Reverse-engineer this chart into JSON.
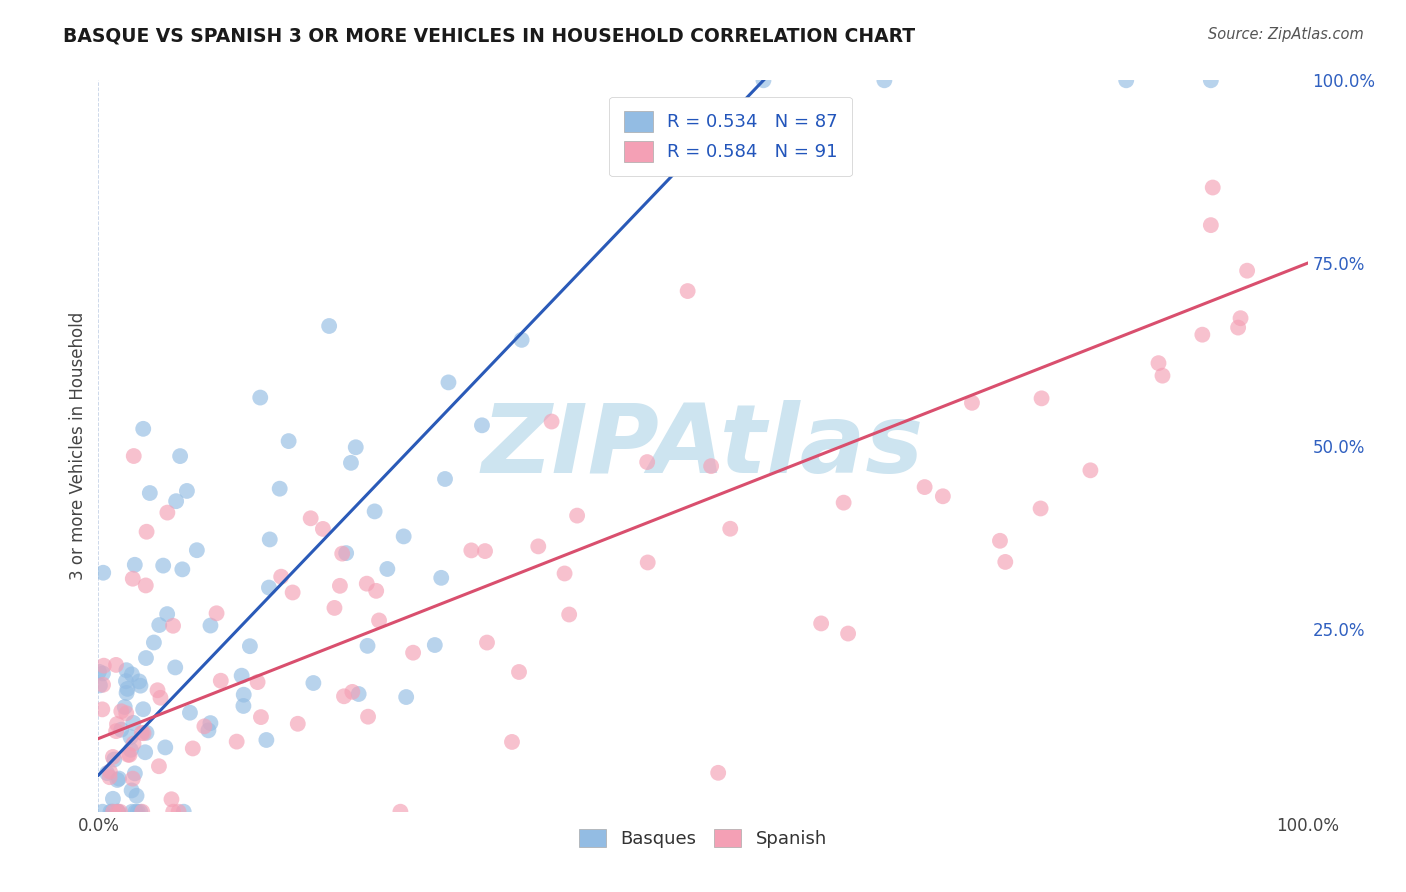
{
  "title": "BASQUE VS SPANISH 3 OR MORE VEHICLES IN HOUSEHOLD CORRELATION CHART",
  "source": "Source: ZipAtlas.com",
  "ylabel": "3 or more Vehicles in Household",
  "xlim": [
    0.0,
    100.0
  ],
  "ylim": [
    0.0,
    100.0
  ],
  "basque_color": "#93bce3",
  "spanish_color": "#f4a0b5",
  "basque_line_color": "#2a5ab8",
  "spanish_line_color": "#d94f6e",
  "watermark": "ZIPAtlas",
  "watermark_color": "#cde4f0",
  "legend_label_basque": "Basques",
  "legend_label_spanish": "Spanish",
  "basque_R": 0.534,
  "basque_N": 87,
  "spanish_R": 0.584,
  "spanish_N": 91,
  "background_color": "#ffffff",
  "grid_color": "#c8d4e8"
}
